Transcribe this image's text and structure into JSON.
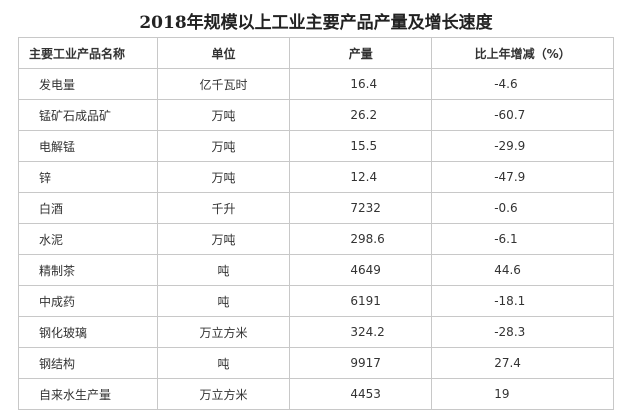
{
  "header": {
    "title": "2018年规模以上工业主要产品产量及增长速度"
  },
  "table": {
    "columns": [
      "主要工业产品名称",
      "单位",
      "产量",
      "比上年增减（%）"
    ],
    "rows": [
      [
        "发电量",
        "亿千瓦时",
        16.4,
        -4.6
      ],
      [
        "锰矿石成品矿",
        "万吨",
        26.2,
        -60.7
      ],
      [
        "电解锰",
        "万吨",
        15.5,
        -29.9
      ],
      [
        "锌",
        "万吨",
        12.4,
        -47.9
      ],
      [
        "白酒",
        "千升",
        7232,
        -0.6
      ],
      [
        "水泥",
        "万吨",
        298.6,
        -6.1
      ],
      [
        "精制茶",
        "吨",
        4649,
        44.6
      ],
      [
        "中成药",
        "吨",
        6191,
        -18.1
      ],
      [
        "钢化玻璃",
        "万立方米",
        324.2,
        -28.3
      ],
      [
        "钢结构",
        "吨",
        9917,
        27.4
      ],
      [
        "自来水生产量",
        "万立方米",
        4453,
        19
      ]
    ]
  }
}
